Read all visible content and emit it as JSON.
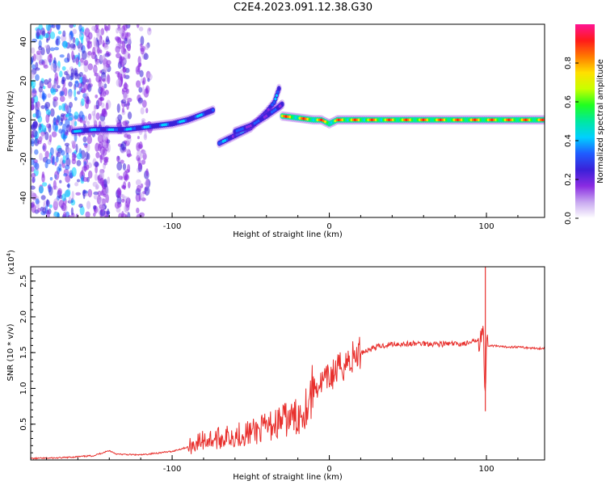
{
  "title": "C2E4.2023.091.12.38.G30",
  "colors": {
    "snr_line": "#e8302d",
    "frame": "#000000",
    "colorbar": [
      "#ffffff",
      "#c8a8f0",
      "#8a2be2",
      "#3a20d8",
      "#1f5cff",
      "#00d0ff",
      "#00e8a0",
      "#20ff20",
      "#c8ff00",
      "#ffe000",
      "#ff7a00",
      "#ff1a1a",
      "#ff1493"
    ]
  },
  "chart_data": [
    {
      "type": "heatmap",
      "title": "",
      "xlabel": "Height of straight line (km)",
      "ylabel": "Frequency (Hz)",
      "xlim": [
        -190,
        137
      ],
      "ylim": [
        -50,
        49
      ],
      "xticks": [
        -100,
        0,
        100
      ],
      "yticks": [
        -40,
        -20,
        0,
        20,
        40
      ],
      "colorbar": {
        "label": "Normalized spectral amplitude",
        "range": [
          0.0,
          1.0
        ],
        "ticks": [
          0.0,
          0.2,
          0.4,
          0.6,
          0.8
        ]
      },
      "ridges": [
        {
          "x": [
            -163,
            -150,
            -140,
            -130,
            -120,
            -110,
            -100,
            -90,
            -80,
            -74
          ],
          "y": [
            -6,
            -5,
            -5,
            -5,
            -4,
            -3,
            -2,
            0,
            3,
            5
          ],
          "amp": 0.45
        },
        {
          "x": [
            -70,
            -60,
            -50,
            -45,
            -40,
            -35,
            -32
          ],
          "y": [
            -12,
            -8,
            -4,
            0,
            4,
            9,
            16
          ],
          "amp": 0.4
        },
        {
          "x": [
            -60,
            -50,
            -40,
            -33,
            -30
          ],
          "y": [
            -6,
            -3,
            2,
            6,
            8
          ],
          "amp": 0.35
        },
        {
          "x": [
            -30,
            -20,
            -10,
            -5,
            0,
            5,
            20,
            60,
            100,
            137
          ],
          "y": [
            2,
            1,
            0,
            0,
            -2,
            0,
            0,
            0,
            0,
            0
          ],
          "amp": 0.9
        }
      ]
    },
    {
      "type": "line",
      "title": "",
      "xlabel": "Height of straight line (km)",
      "ylabel": "SNR (10 * v/v)",
      "multiplier_label": "(x10",
      "multiplier_exp": "4",
      "xlim": [
        -190,
        137
      ],
      "ylim": [
        0,
        2.7
      ],
      "xticks": [
        -100,
        0,
        100
      ],
      "yticks": [
        0.5,
        1.0,
        1.5,
        2.0,
        2.5
      ],
      "series": [
        {
          "x": [
            -190,
            -170,
            -150,
            -140,
            -135,
            -120,
            -100,
            -90,
            -80,
            -70,
            -60,
            -50,
            -40,
            -30,
            -20,
            -15,
            -10,
            0,
            10,
            20,
            30,
            40,
            50,
            60,
            70,
            80,
            90,
            95,
            98,
            99,
            100,
            102,
            110,
            120,
            130,
            137
          ],
          "y": [
            0.02,
            0.03,
            0.06,
            0.13,
            0.08,
            0.07,
            0.12,
            0.18,
            0.28,
            0.3,
            0.35,
            0.38,
            0.45,
            0.55,
            0.6,
            0.75,
            1.0,
            1.15,
            1.35,
            1.5,
            1.58,
            1.62,
            1.62,
            1.63,
            1.62,
            1.62,
            1.63,
            1.7,
            1.85,
            0.7,
            1.6,
            1.6,
            1.58,
            1.58,
            1.56,
            1.56
          ]
        }
      ]
    }
  ]
}
